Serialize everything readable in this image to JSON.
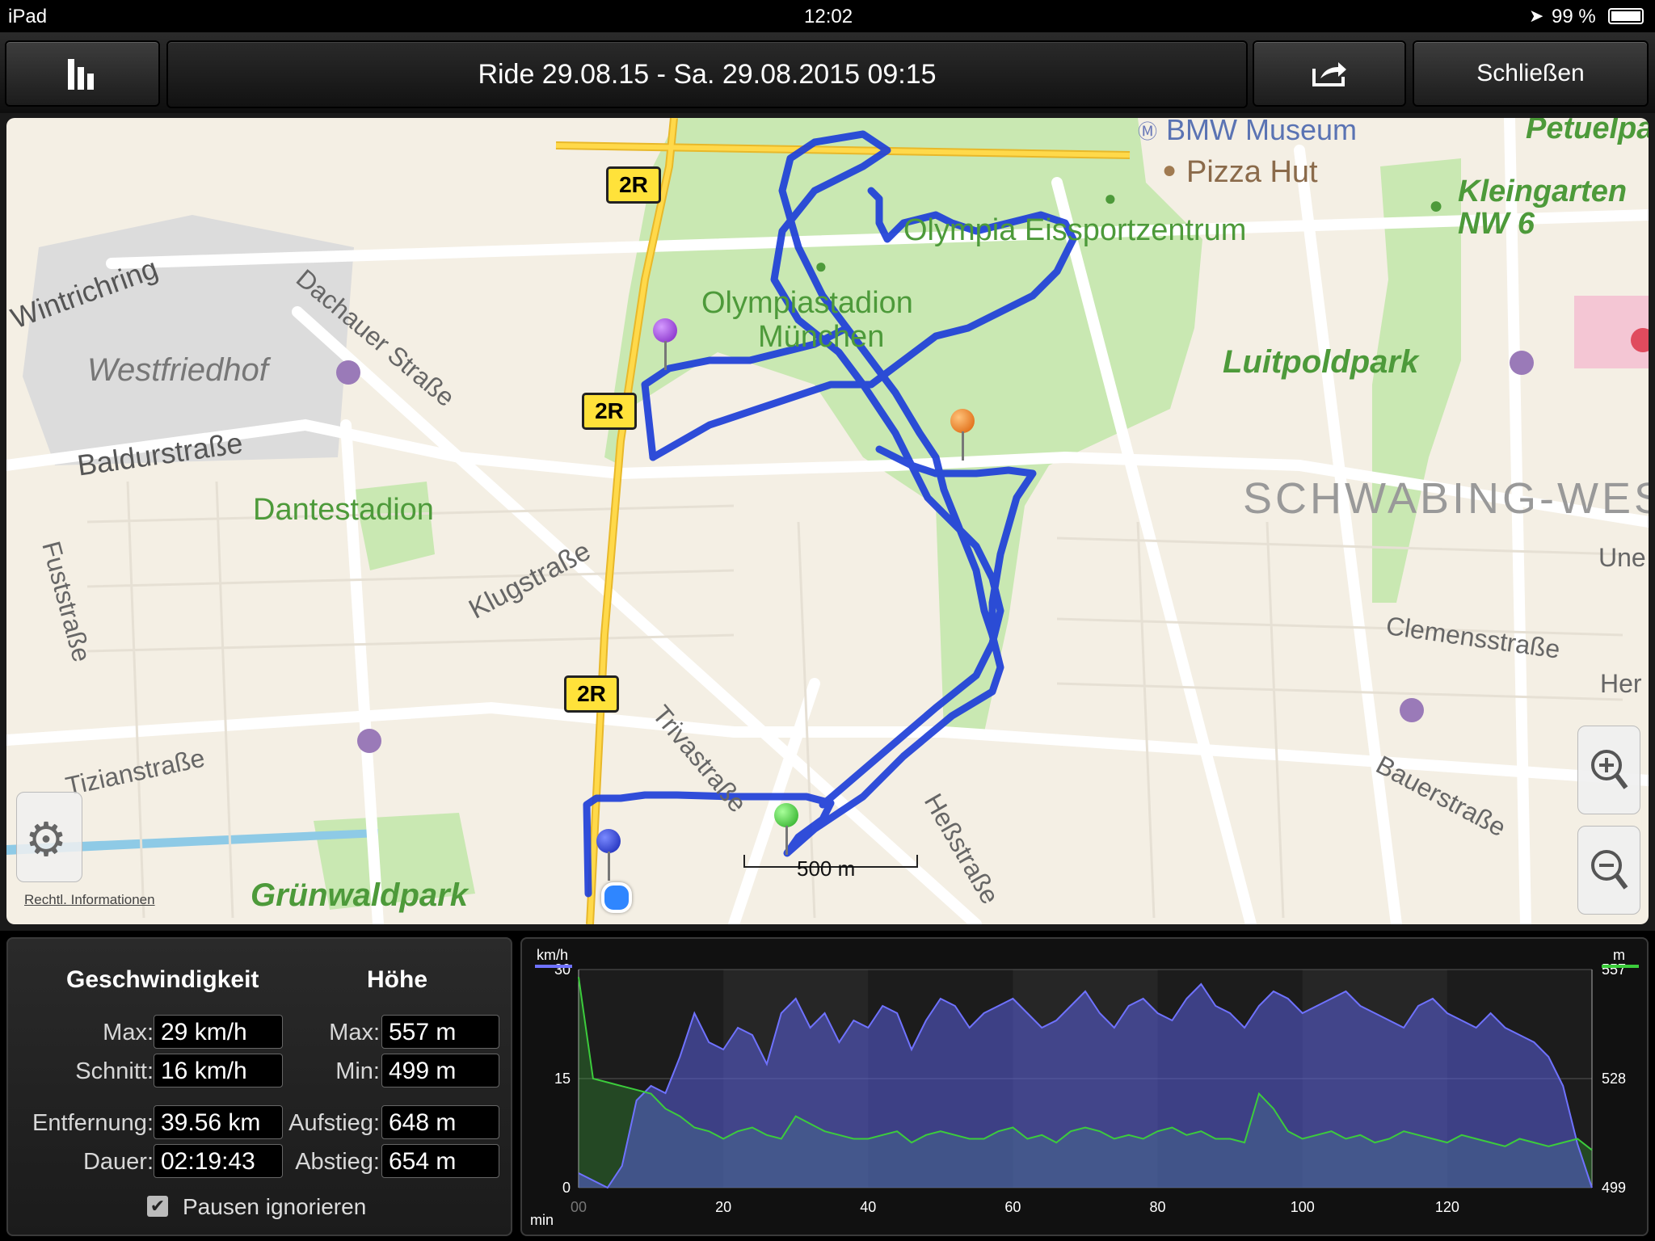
{
  "status_bar": {
    "device": "iPad",
    "time": "12:02",
    "battery": "99 %"
  },
  "toolbar": {
    "title": "Ride 29.08.15 - Sa. 29.08.2015 09:15",
    "close_label": "Schließen"
  },
  "map": {
    "labels": {
      "bmw_museum": "BMW Museum",
      "pizza_hut": "Pizza Hut",
      "petuelpark": "Petuelpa",
      "kleingarten1": "Kleingarten",
      "kleingarten2": "NW 6",
      "wintrichring": "Wintrichring",
      "dachauer": "Dachauer Straße",
      "westfriedhof": "Westfriedhof",
      "olympia_eis": "Olympia Eissportzentrum",
      "olympiastadion1": "Olympiastadion",
      "olympiastadion2": "München",
      "luitpoldpark": "Luitpoldpark",
      "baldurstrasse": "Baldurstraße",
      "dantestadion": "Dantestadion",
      "schwabing": "SCHWABING-WEST",
      "fuststrasse": "Fuststraße",
      "klugstrasse": "Klugstraße",
      "une": "Une",
      "clemensstrasse": "Clemensstraße",
      "her": "Her",
      "tizianstrasse": "Tizianstraße",
      "trivastrasse": "Trivastraße",
      "hessstrasse": "Heßstraße",
      "bauerstrasse": "Bauerstraße",
      "gruenwaldpark": "Grünwaldpark",
      "road_2r": "2R"
    },
    "scale_label": "500 m",
    "legal_label": "Rechtl. Informationen",
    "route_color": "#1e3fd8"
  },
  "stats": {
    "speed_header": "Geschwindigkeit",
    "height_header": "Höhe",
    "max_label": "Max:",
    "avg_label": "Schnitt:",
    "min_label": "Min:",
    "distance_label": "Entfernung:",
    "duration_label": "Dauer:",
    "ascent_label": "Aufstieg:",
    "descent_label": "Abstieg:",
    "speed_max": "29 km/h",
    "speed_avg": "16 km/h",
    "height_max": "557 m",
    "height_min": "499 m",
    "distance": "39.56 km",
    "duration": "02:19:43",
    "ascent": "648 m",
    "descent": "654 m",
    "ignore_pauses_label": "Pausen ignorieren",
    "ignore_pauses": true
  },
  "chart_data": {
    "type": "area",
    "left_unit": "km/h",
    "right_unit": "m",
    "x_unit": "min",
    "x_ticks": [
      "00",
      "20",
      "40",
      "60",
      "80",
      "100",
      "120"
    ],
    "x_range": [
      0,
      140
    ],
    "left_ticks": [
      "30",
      "15",
      "0"
    ],
    "left_range": [
      0,
      30
    ],
    "right_ticks": [
      "557",
      "528",
      "499"
    ],
    "right_range": [
      499,
      557
    ],
    "series": [
      {
        "name": "km/h",
        "color": "#6f72ff",
        "x": [
          0,
          2,
          4,
          6,
          8,
          10,
          12,
          14,
          16,
          18,
          20,
          22,
          24,
          26,
          28,
          30,
          32,
          34,
          36,
          38,
          40,
          42,
          44,
          46,
          48,
          50,
          52,
          54,
          56,
          58,
          60,
          62,
          64,
          66,
          68,
          70,
          72,
          74,
          76,
          78,
          80,
          82,
          84,
          86,
          88,
          90,
          92,
          94,
          96,
          98,
          100,
          102,
          104,
          106,
          108,
          110,
          112,
          114,
          116,
          118,
          120,
          122,
          124,
          126,
          128,
          130,
          132,
          134,
          136,
          138,
          140
        ],
        "values": [
          2,
          1,
          0,
          3,
          12,
          14,
          13,
          18,
          24,
          20,
          19,
          22,
          21,
          17,
          24,
          26,
          22,
          24,
          20,
          23,
          22,
          25,
          24,
          19,
          23,
          26,
          25,
          22,
          24,
          25,
          26,
          24,
          22,
          23,
          25,
          27,
          24,
          22,
          25,
          26,
          24,
          23,
          26,
          28,
          25,
          24,
          22,
          25,
          27,
          26,
          24,
          25,
          26,
          27,
          25,
          24,
          23,
          22,
          25,
          26,
          24,
          23,
          22,
          24,
          22,
          21,
          20,
          18,
          14,
          6,
          0
        ]
      },
      {
        "name": "m",
        "color": "#3ccc3c",
        "x": [
          0,
          2,
          4,
          6,
          8,
          10,
          12,
          14,
          16,
          18,
          20,
          22,
          24,
          26,
          28,
          30,
          32,
          34,
          36,
          38,
          40,
          42,
          44,
          46,
          48,
          50,
          52,
          54,
          56,
          58,
          60,
          62,
          64,
          66,
          68,
          70,
          72,
          74,
          76,
          78,
          80,
          82,
          84,
          86,
          88,
          90,
          92,
          94,
          96,
          98,
          100,
          102,
          104,
          106,
          108,
          110,
          112,
          114,
          116,
          118,
          120,
          122,
          124,
          126,
          128,
          130,
          132,
          134,
          136,
          138,
          140
        ],
        "values": [
          555,
          528,
          527,
          526,
          525,
          524,
          520,
          518,
          515,
          514,
          512,
          514,
          515,
          513,
          512,
          518,
          516,
          514,
          513,
          512,
          512,
          513,
          514,
          511,
          513,
          514,
          513,
          512,
          512,
          514,
          515,
          512,
          513,
          511,
          514,
          515,
          514,
          512,
          513,
          512,
          514,
          515,
          513,
          514,
          512,
          512,
          511,
          524,
          520,
          514,
          512,
          513,
          514,
          512,
          513,
          511,
          512,
          514,
          513,
          512,
          511,
          513,
          512,
          511,
          510,
          512,
          511,
          510,
          511,
          512,
          509
        ]
      }
    ]
  }
}
